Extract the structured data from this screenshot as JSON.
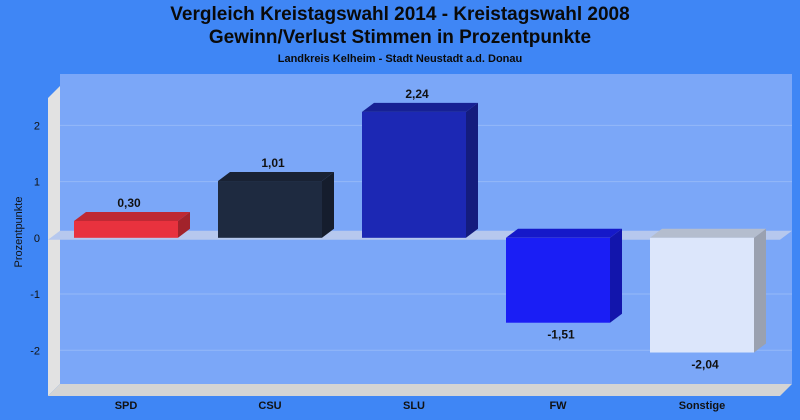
{
  "chart_data": {
    "type": "bar",
    "title": "Vergleich Kreistagswahl 2014 - Kreistagswahl 2008",
    "subtitle": "Gewinn/Verlust Stimmen in Prozentpunkte",
    "caption": "Landkreis Kelheim - Stadt Neustadt a.d. Donau",
    "ylabel": "Prozentpunkte",
    "xlabel": "",
    "ylim": [
      -2.6,
      2.7
    ],
    "yticks": [
      -2,
      -1,
      0,
      1,
      2
    ],
    "grid": true,
    "categories": [
      "SPD",
      "CSU",
      "SLU",
      "FW",
      "Sonstige"
    ],
    "values": [
      0.3,
      1.01,
      2.24,
      -1.51,
      -2.04
    ],
    "value_labels": [
      "0,30",
      "1,01",
      "2,24",
      "-1,51",
      "-2,04"
    ],
    "colors": [
      "#e8323e",
      "#1e2a40",
      "#1c28b4",
      "#1a1ef5",
      "#dce6fb"
    ],
    "background": "#3f86f5",
    "plot_background": "#7ba7f8"
  }
}
